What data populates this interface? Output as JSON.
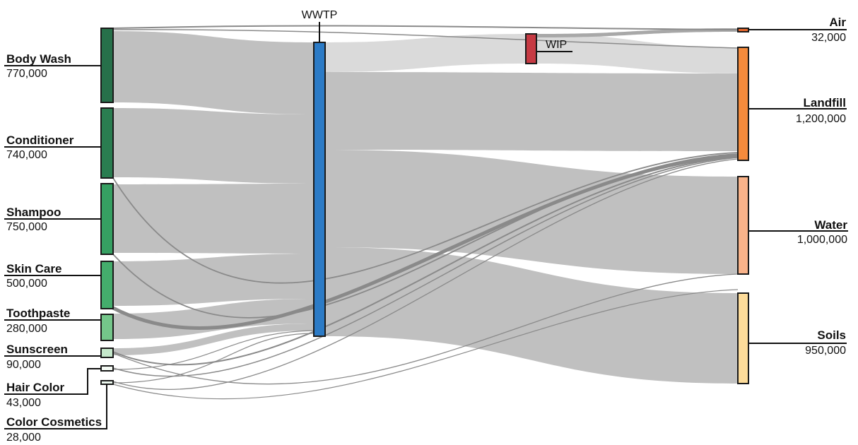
{
  "diagram": {
    "type": "sankey",
    "sources": [
      {
        "id": "body_wash",
        "name": "Body Wash",
        "value": "770,000",
        "color": "#27704a"
      },
      {
        "id": "conditioner",
        "name": "Conditioner",
        "value": "740,000",
        "color": "#2a7d50"
      },
      {
        "id": "shampoo",
        "name": "Shampoo",
        "value": "750,000",
        "color": "#36a062"
      },
      {
        "id": "skin_care",
        "name": "Skin Care",
        "value": "500,000",
        "color": "#44ad6c"
      },
      {
        "id": "toothpaste",
        "name": "Toothpaste",
        "value": "280,000",
        "color": "#74c68a"
      },
      {
        "id": "sunscreen",
        "name": "Sunscreen",
        "value": "90,000",
        "color": "#c5e8cb"
      },
      {
        "id": "hair_color",
        "name": "Hair Color",
        "value": "43,000",
        "color": "#f4faf4"
      },
      {
        "id": "color_cosmetics",
        "name": "Color Cosmetics",
        "value": "28,000",
        "color": "#ecf7ee"
      }
    ],
    "intermediates": [
      {
        "id": "wwtp",
        "name": "WWTP",
        "color": "#2c7bc6"
      },
      {
        "id": "wip",
        "name": "WIP",
        "color": "#c63a43"
      }
    ],
    "sinks": [
      {
        "id": "air",
        "name": "Air",
        "value": "32,000",
        "color": "#e8682e"
      },
      {
        "id": "landfill",
        "name": "Landfill",
        "value": "1,200,000",
        "color": "#f58b3c"
      },
      {
        "id": "water",
        "name": "Water",
        "value": "1,000,000",
        "color": "#f9b38a"
      },
      {
        "id": "soils",
        "name": "Soils",
        "value": "950,000",
        "color": "#fddc9a"
      }
    ],
    "flow_color": "#c0c0c0",
    "flow_color_light": "#dadada",
    "thin_flow_color": "#8a8a8a"
  }
}
